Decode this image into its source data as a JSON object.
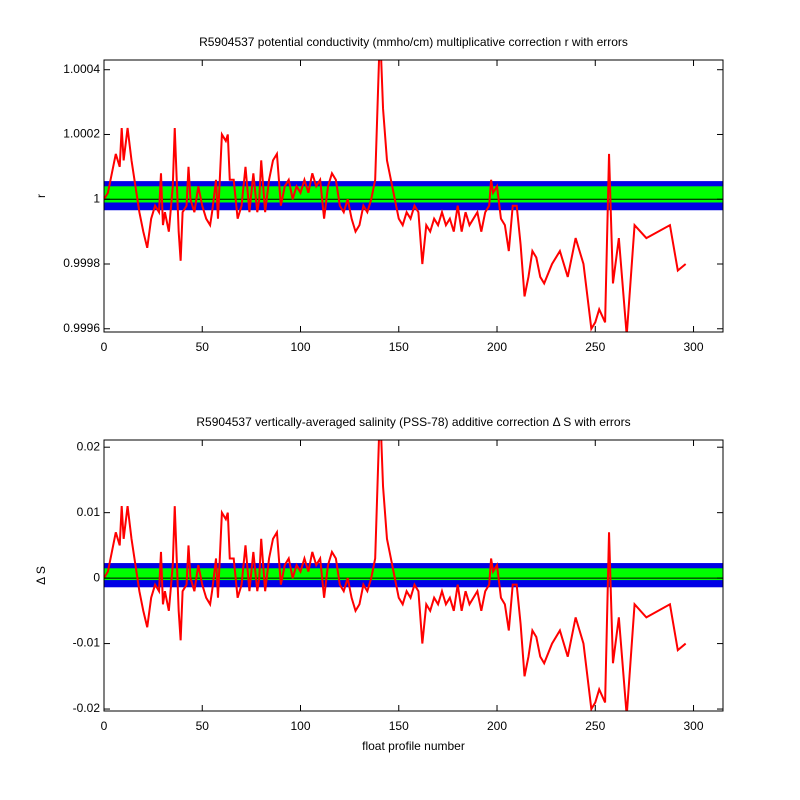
{
  "chart_data": [
    {
      "type": "line",
      "title": "R5904537 potential conductivity (mmho/cm) multiplicative correction r with errors",
      "y_label": "r",
      "xlim": [
        0,
        315
      ],
      "xticks": [
        0,
        50,
        100,
        150,
        200,
        250,
        300
      ],
      "ylim": [
        0.99959,
        1.00043
      ],
      "yticks": [
        0.9996,
        0.9998,
        1,
        1.0002,
        1.0004
      ],
      "bands": [
        {
          "color": "#0000e6",
          "lower": 0.999966,
          "upper": 1.000056
        },
        {
          "color": "#00ff00",
          "lower": 0.99999,
          "upper": 1.00004
        }
      ],
      "reference_line": {
        "value": 1,
        "color": "#000000"
      },
      "x": [
        0,
        2,
        4,
        6,
        8,
        9,
        10,
        12,
        14,
        16,
        18,
        20,
        22,
        24,
        26,
        28,
        29,
        30,
        31,
        33,
        35,
        36,
        37,
        38,
        39,
        40,
        42,
        43,
        44,
        46,
        48,
        50,
        52,
        54,
        55,
        57,
        58,
        60,
        62,
        63,
        64,
        66,
        68,
        70,
        72,
        74,
        76,
        78,
        79,
        80,
        82,
        84,
        86,
        88,
        90,
        92,
        94,
        96,
        98,
        100,
        102,
        104,
        106,
        108,
        110,
        112,
        114,
        116,
        118,
        120,
        122,
        124,
        126,
        128,
        130,
        132,
        134,
        136,
        138,
        140,
        141,
        142,
        144,
        146,
        148,
        150,
        152,
        154,
        156,
        158,
        160,
        162,
        164,
        166,
        168,
        170,
        172,
        174,
        176,
        178,
        180,
        182,
        184,
        186,
        188,
        190,
        192,
        194,
        196,
        197,
        198,
        200,
        202,
        204,
        206,
        208,
        210,
        212,
        214,
        216,
        218,
        220,
        222,
        224,
        228,
        232,
        236,
        240,
        244,
        248,
        250,
        252,
        255,
        257,
        259,
        262,
        266,
        270,
        276,
        288,
        292,
        296
      ],
      "series": [
        {
          "color": "#ff0000",
          "values": [
            1,
            1.00002,
            1.00008,
            1.00014,
            1.0001,
            1.00022,
            1.00012,
            1.00022,
            1.00012,
            1.00004,
            0.99996,
            0.9999,
            0.99985,
            0.99994,
            0.99998,
            0.99996,
            1.00008,
            0.99992,
            0.99996,
            0.9999,
            1.00004,
            1.00022,
            1.00006,
            0.9999,
            0.99981,
            0.99996,
            0.99998,
            1.0001,
            1,
            0.99996,
            1.00004,
            0.99998,
            0.99994,
            0.99992,
            0.99996,
            1.00006,
            0.99994,
            1.0002,
            1.00018,
            1.0002,
            1.00006,
            1.00006,
            0.99994,
            0.99998,
            1.0001,
            0.99996,
            1.00008,
            0.99996,
            1,
            1.00012,
            0.99996,
            1.00006,
            1.00012,
            1.00014,
            0.99998,
            1.00004,
            1.00006,
            1,
            1.00004,
            1.00002,
            1.00006,
            1.00002,
            1.00008,
            1.00004,
            1.00006,
            0.99994,
            1.00004,
            1.00008,
            1.00006,
            0.99998,
            0.99996,
            1,
            0.99994,
            0.9999,
            0.99992,
            0.99998,
            0.99996,
            1,
            1.00006,
            1.00044,
            1.00044,
            1.00028,
            1.00012,
            1.00006,
            1,
            0.99994,
            0.99992,
            0.99996,
            0.99994,
            0.99998,
            0.99996,
            0.9998,
            0.99992,
            0.9999,
            0.99994,
            0.99992,
            0.99996,
            0.99992,
            0.99994,
            0.9999,
            0.99998,
            0.9999,
            0.99996,
            0.99992,
            0.99994,
            0.99996,
            0.9999,
            0.99996,
            0.99998,
            1.00006,
            1.00002,
            1.00004,
            0.99994,
            0.99992,
            0.99984,
            0.99998,
            0.99998,
            0.99986,
            0.9997,
            0.99976,
            0.99984,
            0.99982,
            0.99976,
            0.99974,
            0.9998,
            0.99984,
            0.99976,
            0.99988,
            0.9998,
            0.9996,
            0.99962,
            0.99966,
            0.99962,
            1.00014,
            0.99974,
            0.99988,
            0.99958,
            0.99992,
            0.99988,
            0.99992,
            0.99978,
            0.9998
          ]
        }
      ]
    },
    {
      "type": "line",
      "title": "R5904537 vertically-averaged salinity (PSS-78) additive correction Δ S with errors",
      "x_label": "float profile number",
      "y_label": "Δ S",
      "xlim": [
        0,
        315
      ],
      "xticks": [
        0,
        50,
        100,
        150,
        200,
        250,
        300
      ],
      "ylim": [
        -0.0203,
        0.0211
      ],
      "yticks": [
        -0.02,
        -0.01,
        0,
        0.01,
        0.02
      ],
      "bands": [
        {
          "color": "#0000e6",
          "lower": -0.0014,
          "upper": 0.0023
        },
        {
          "color": "#00ff00",
          "lower": -0.0003,
          "upper": 0.0015
        }
      ],
      "reference_line": {
        "value": 0,
        "color": "#000000"
      },
      "x": [
        0,
        2,
        4,
        6,
        8,
        9,
        10,
        12,
        14,
        16,
        18,
        20,
        22,
        24,
        26,
        28,
        29,
        30,
        31,
        33,
        35,
        36,
        37,
        38,
        39,
        40,
        42,
        43,
        44,
        46,
        48,
        50,
        52,
        54,
        55,
        57,
        58,
        60,
        62,
        63,
        64,
        66,
        68,
        70,
        72,
        74,
        76,
        78,
        79,
        80,
        82,
        84,
        86,
        88,
        90,
        92,
        94,
        96,
        98,
        100,
        102,
        104,
        106,
        108,
        110,
        112,
        114,
        116,
        118,
        120,
        122,
        124,
        126,
        128,
        130,
        132,
        134,
        136,
        138,
        140,
        141,
        142,
        144,
        146,
        148,
        150,
        152,
        154,
        156,
        158,
        160,
        162,
        164,
        166,
        168,
        170,
        172,
        174,
        176,
        178,
        180,
        182,
        184,
        186,
        188,
        190,
        192,
        194,
        196,
        197,
        198,
        200,
        202,
        204,
        206,
        208,
        210,
        212,
        214,
        216,
        218,
        220,
        222,
        224,
        228,
        232,
        236,
        240,
        244,
        248,
        250,
        252,
        255,
        257,
        259,
        262,
        266,
        270,
        276,
        288,
        292,
        296
      ],
      "series": [
        {
          "color": "#ff0000",
          "values": [
            0,
            0.001,
            0.004,
            0.007,
            0.005,
            0.011,
            0.006,
            0.011,
            0.006,
            0.002,
            -0.002,
            -0.005,
            -0.0075,
            -0.003,
            -0.001,
            -0.002,
            0.004,
            -0.004,
            -0.002,
            -0.005,
            0.002,
            0.011,
            0.003,
            -0.005,
            -0.0095,
            -0.002,
            -0.001,
            0.005,
            0,
            -0.002,
            0.002,
            -0.001,
            -0.003,
            -0.004,
            -0.002,
            0.003,
            -0.003,
            0.01,
            0.009,
            0.01,
            0.003,
            0.003,
            -0.003,
            -0.001,
            0.005,
            -0.002,
            0.004,
            -0.002,
            0,
            0.006,
            -0.002,
            0.003,
            0.006,
            0.007,
            -0.001,
            0.002,
            0.003,
            0,
            0.002,
            0.001,
            0.003,
            0.001,
            0.004,
            0.002,
            0.003,
            -0.003,
            0.002,
            0.004,
            0.003,
            -0.001,
            -0.002,
            0,
            -0.003,
            -0.005,
            -0.004,
            -0.001,
            -0.002,
            0,
            0.003,
            0.022,
            0.022,
            0.014,
            0.006,
            0.003,
            0,
            -0.003,
            -0.004,
            -0.002,
            -0.003,
            -0.001,
            -0.002,
            -0.01,
            -0.004,
            -0.005,
            -0.003,
            -0.004,
            -0.002,
            -0.004,
            -0.003,
            -0.005,
            -0.001,
            -0.005,
            -0.002,
            -0.004,
            -0.003,
            -0.002,
            -0.005,
            -0.002,
            -0.001,
            0.003,
            0.001,
            0.002,
            -0.003,
            -0.004,
            -0.008,
            -0.001,
            -0.001,
            -0.007,
            -0.015,
            -0.012,
            -0.008,
            -0.009,
            -0.012,
            -0.013,
            -0.01,
            -0.008,
            -0.012,
            -0.006,
            -0.01,
            -0.02,
            -0.019,
            -0.017,
            -0.019,
            0.007,
            -0.013,
            -0.006,
            -0.021,
            -0.004,
            -0.006,
            -0.004,
            -0.011,
            -0.01
          ]
        }
      ]
    }
  ]
}
